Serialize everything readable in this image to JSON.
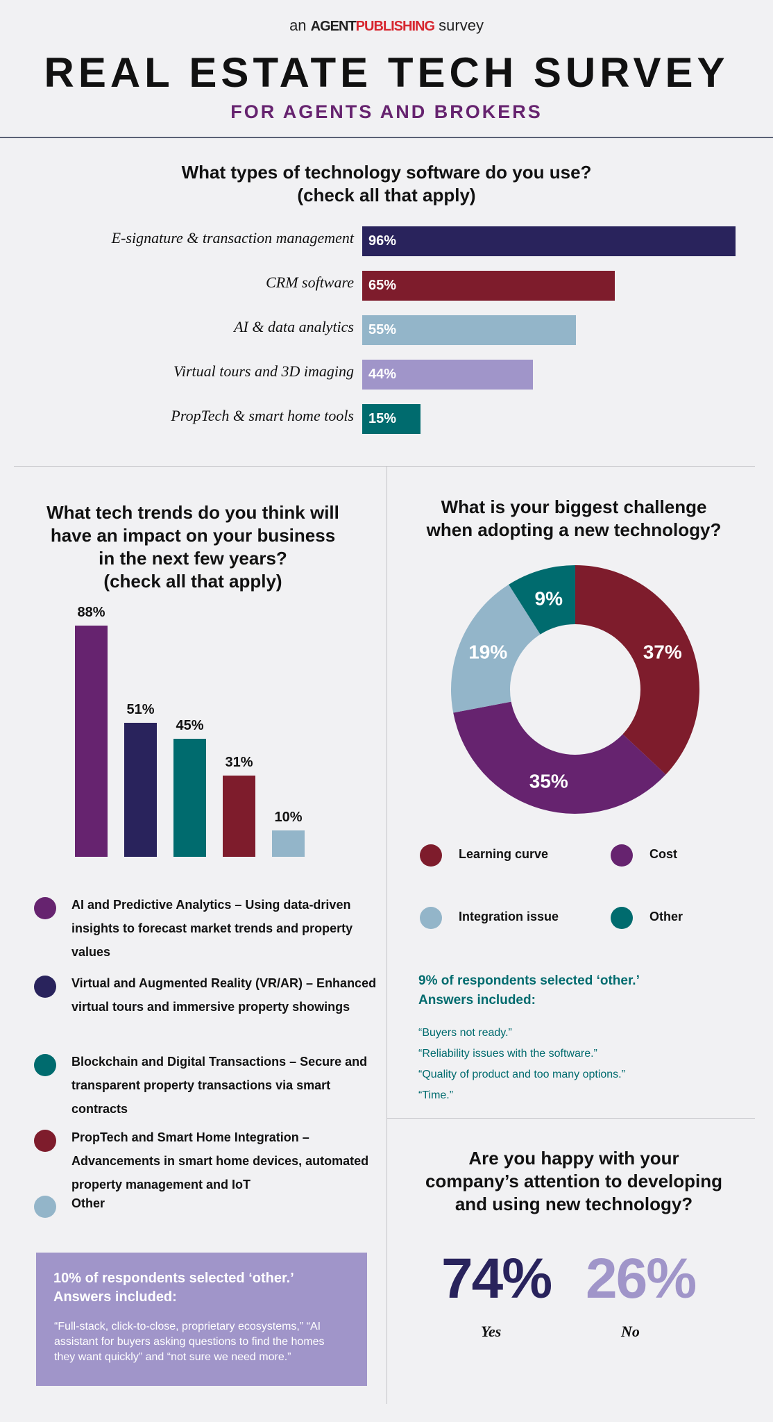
{
  "header": {
    "brand_prefix": "an",
    "brand_agent": "AGENT",
    "brand_publishing": "PUBLISHING",
    "brand_suffix": "survey",
    "title": "REAL ESTATE TECH SURVEY",
    "subtitle": "FOR AGENTS AND BROKERS"
  },
  "colors": {
    "navy": "#29235c",
    "red": "#7e1c2c",
    "light_blue": "#93b5c9",
    "lavender": "#a095c9",
    "teal": "#006b6e",
    "purple": "#66236f"
  },
  "chart_data": [
    {
      "type": "bar",
      "orientation": "horizontal",
      "title": "What types of technology software do you use?",
      "subtitle": "(check all that apply)",
      "categories": [
        "E-signature & transaction management",
        "CRM software",
        "AI & data analytics",
        "Virtual tours and 3D imaging",
        "PropTech & smart home tools"
      ],
      "values": [
        96,
        65,
        55,
        44,
        15
      ],
      "labels": [
        "96%",
        "65%",
        "55%",
        "44%",
        "15%"
      ],
      "colors": [
        "#29235c",
        "#7e1c2c",
        "#93b5c9",
        "#a095c9",
        "#006b6e"
      ],
      "xlim": [
        0,
        100
      ]
    },
    {
      "type": "bar",
      "orientation": "vertical",
      "title_lines": [
        "What tech trends do you think will",
        "have an impact on your business",
        "in the next few years?",
        "(check all that apply)"
      ],
      "categories": [
        "AI and Predictive Analytics",
        "Virtual and Augmented Reality (VR/AR)",
        "Blockchain and Digital Transactions",
        "PropTech and Smart Home Integration",
        "Other"
      ],
      "values": [
        88,
        51,
        45,
        31,
        10
      ],
      "labels": [
        "88%",
        "51%",
        "45%",
        "31%",
        "10%"
      ],
      "colors": [
        "#66236f",
        "#29235c",
        "#006b6e",
        "#7e1c2c",
        "#93b5c9"
      ],
      "ylim": [
        0,
        100
      ],
      "legend": [
        "AI and Predictive Analytics – Using data-driven insights to forecast market trends and property values",
        "Virtual and Augmented Reality (VR/AR) – Enhanced virtual tours and immersive property showings",
        "Blockchain and Digital Transactions – Secure and transparent property transactions via smart contracts",
        "PropTech and Smart Home Integration – Advancements in smart home devices, automated property management and IoT",
        "Other"
      ],
      "other_note": {
        "heading_1": "10% of respondents selected ‘other.’",
        "heading_2": "Answers included:",
        "body": "“Full-stack, click-to-close, proprietary ecosystems,” “AI assistant for buyers asking questions to find the homes they want quickly” and “not sure we need more.”"
      }
    },
    {
      "type": "pie",
      "donut": true,
      "title_lines": [
        "What is your biggest challenge",
        "when adopting a new technology?"
      ],
      "categories": [
        "Learning curve",
        "Cost",
        "Integration issue",
        "Other"
      ],
      "values": [
        37,
        35,
        19,
        9
      ],
      "labels": [
        "37%",
        "35%",
        "19%",
        "9%"
      ],
      "colors": [
        "#7e1c2c",
        "#66236f",
        "#93b5c9",
        "#006b6e"
      ],
      "other_note": {
        "heading_1": "9% of respondents selected ‘other.’",
        "heading_2": "Answers included:",
        "quotes": [
          "“Buyers not ready.”",
          "“Reliability issues with the software.”",
          "“Quality of product and too many options.”",
          "“Time.”"
        ]
      }
    }
  ],
  "happiness": {
    "title_lines": [
      "Are you happy with your",
      "company’s attention to developing",
      "and using new technology?"
    ],
    "yes_value": "74%",
    "yes_label": "Yes",
    "no_value": "26%",
    "no_label": "No"
  }
}
